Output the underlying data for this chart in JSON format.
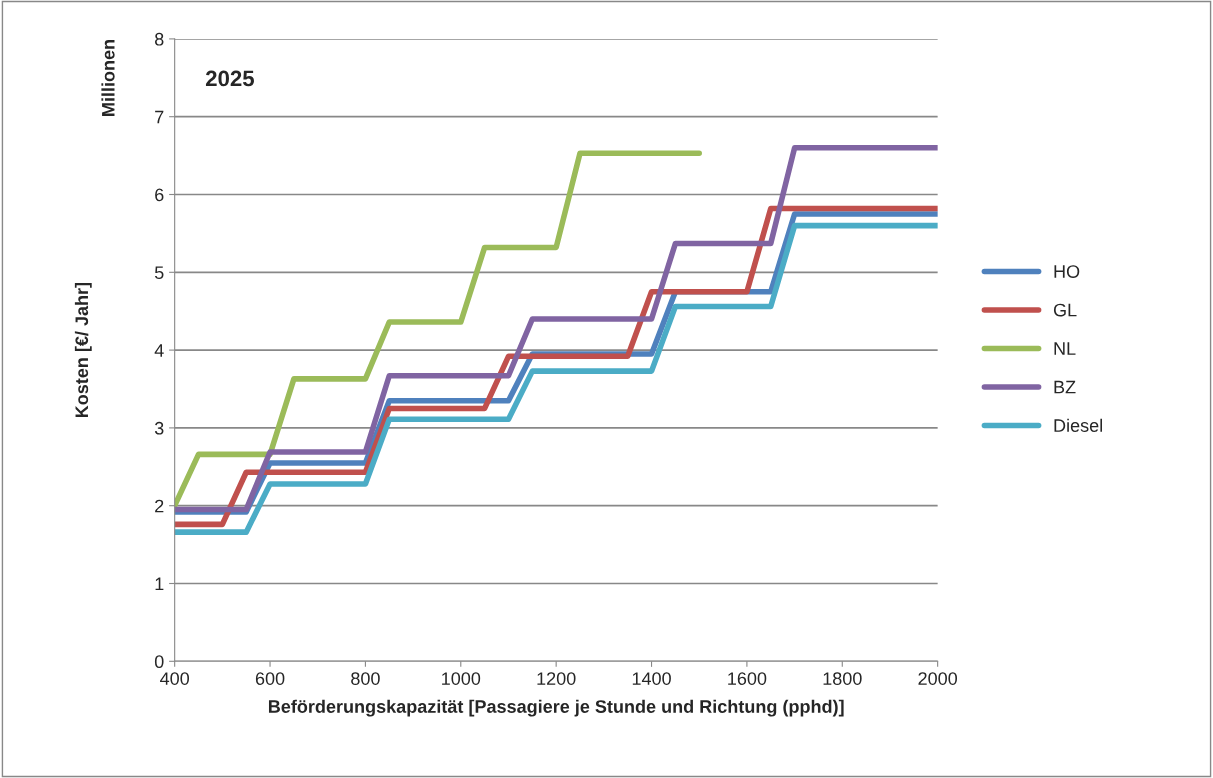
{
  "chart_data": {
    "type": "line",
    "xlabel": "Beförderungskapazität [Passagiere je Stunde und Richtung (pphd)]",
    "ylabel": "Kosten [€/ Jahr]",
    "annotations": [
      "2025",
      "Millionen"
    ],
    "xlim": [
      400,
      2000
    ],
    "xticks": [
      400,
      600,
      800,
      1000,
      1200,
      1400,
      1600,
      1800,
      2000
    ],
    "ylim": [
      0,
      8
    ],
    "yticks": [
      0,
      1,
      2,
      3,
      4,
      5,
      6,
      7,
      8
    ],
    "grid": "y",
    "legend": "right",
    "marker": "none",
    "line_style": "solid",
    "series": [
      {
        "name": "HO",
        "color": "#4f81bd",
        "x": [
          400,
          550,
          600,
          800,
          850,
          1100,
          1150,
          1400,
          1450,
          1650,
          1700,
          2000
        ],
        "values": [
          1.92,
          1.92,
          2.55,
          2.55,
          3.35,
          3.35,
          3.95,
          3.95,
          4.75,
          4.75,
          5.75,
          5.75
        ]
      },
      {
        "name": "GL",
        "color": "#c0504d",
        "x": [
          400,
          500,
          550,
          800,
          850,
          1050,
          1100,
          1350,
          1400,
          1600,
          1650,
          2000
        ],
        "values": [
          1.76,
          1.76,
          2.43,
          2.43,
          3.25,
          3.25,
          3.92,
          3.92,
          4.75,
          4.75,
          5.82,
          5.82
        ]
      },
      {
        "name": "NL",
        "color": "#9bbb59",
        "x": [
          400,
          450,
          600,
          650,
          800,
          850,
          1000,
          1050,
          1200,
          1250,
          1500
        ],
        "values": [
          2.0,
          2.66,
          2.66,
          3.63,
          3.63,
          4.36,
          4.36,
          5.32,
          5.32,
          6.53,
          6.53
        ]
      },
      {
        "name": "BZ",
        "color": "#8064a2",
        "x": [
          400,
          550,
          600,
          800,
          850,
          1100,
          1150,
          1400,
          1450,
          1650,
          1700,
          2000
        ],
        "values": [
          1.95,
          1.95,
          2.69,
          2.69,
          3.67,
          3.67,
          4.4,
          4.4,
          5.37,
          5.37,
          6.6,
          6.6
        ]
      },
      {
        "name": "Diesel",
        "color": "#4bacc6",
        "x": [
          400,
          550,
          600,
          800,
          850,
          1100,
          1150,
          1400,
          1450,
          1650,
          1700,
          2000
        ],
        "values": [
          1.66,
          1.66,
          2.28,
          2.28,
          3.11,
          3.11,
          3.73,
          3.73,
          4.56,
          4.56,
          5.6,
          5.6
        ]
      }
    ]
  }
}
